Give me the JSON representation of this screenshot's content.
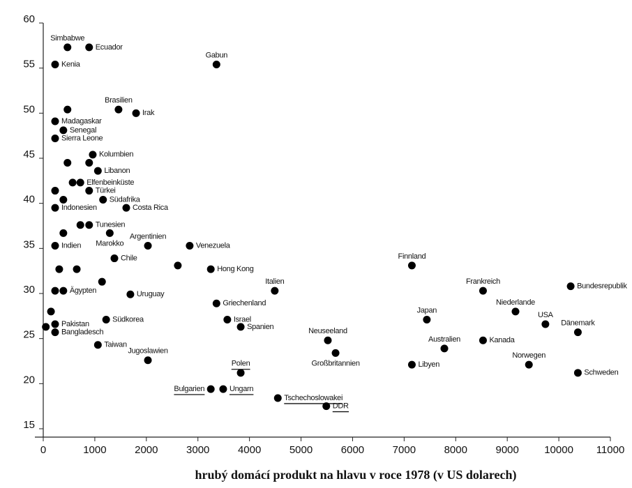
{
  "chart_data": {
    "type": "scatter",
    "xlabel": "hrubý domácí produkt na hlavu v roce 1978 (v US dolarech)",
    "xlim": [
      0,
      11000
    ],
    "ylim": [
      15,
      60
    ],
    "xticks": [
      0,
      1000,
      2000,
      3000,
      4000,
      5000,
      6000,
      7000,
      8000,
      9000,
      10000,
      11000
    ],
    "yticks": [
      15,
      20,
      25,
      30,
      35,
      40,
      45,
      50,
      55,
      60
    ],
    "color": "#000000",
    "labels": [
      "Simbabwe",
      "Ecuador",
      "Kenia",
      "Gabun",
      "Brasilien",
      "Irak",
      null,
      "Madagaskar",
      "Senegal",
      "Sierra Leone",
      "Kolumbien",
      null,
      "Libanon",
      null,
      null,
      "Elfenbeinküste",
      "Türkei",
      null,
      "Südafrika",
      "Costa Rica",
      "Indonesien",
      null,
      null,
      "Tunesien",
      "Marokko",
      null,
      "Indien",
      "Argentinien",
      "Venezuela",
      "Chile",
      null,
      "Hong Kong",
      null,
      null,
      null,
      null,
      "Ägypten",
      "Uruguay",
      "Italien",
      "Griechenland",
      "Israel",
      "Spanien",
      "Südkorea",
      null,
      "Pakistan",
      null,
      "Bangladesch",
      "Taiwan",
      "Jugoslawien",
      "Polen",
      "Bulgarien",
      "Ungarn",
      "Tschechoslowakei",
      "DDR",
      "Neuseeland",
      "Großbritannien",
      "Finnland",
      "Japan",
      "Australien",
      "Libyen",
      "Frankreich",
      "Niederlande",
      "Kanada",
      "USA",
      "Norwegen",
      "Bundesrepublik",
      "Dänemark",
      "Schweden"
    ],
    "x": [
      470,
      890,
      230,
      3360,
      1460,
      1800,
      470,
      230,
      390,
      230,
      960,
      890,
      1060,
      470,
      570,
      720,
      890,
      230,
      1160,
      1610,
      230,
      390,
      720,
      890,
      1290,
      390,
      230,
      2030,
      2840,
      1380,
      2610,
      3250,
      310,
      650,
      1140,
      230,
      390,
      1690,
      4490,
      3360,
      3570,
      3830,
      1220,
      150,
      230,
      50,
      230,
      1060,
      2030,
      3830,
      3250,
      3490,
      4550,
      5490,
      5520,
      5670,
      7150,
      7440,
      7780,
      7150,
      8530,
      9160,
      8530,
      9740,
      9420,
      10230,
      10370,
      10370
    ],
    "y": [
      57.3,
      57.3,
      55.4,
      55.4,
      50.4,
      50.0,
      50.4,
      49.1,
      48.1,
      47.2,
      45.4,
      44.5,
      43.6,
      44.5,
      42.3,
      42.3,
      41.4,
      41.4,
      40.4,
      39.5,
      39.5,
      40.4,
      37.6,
      37.6,
      36.7,
      36.7,
      35.3,
      35.3,
      35.3,
      33.9,
      33.1,
      32.7,
      32.7,
      32.7,
      31.3,
      30.3,
      30.3,
      29.9,
      30.3,
      28.9,
      27.1,
      26.3,
      27.1,
      28.0,
      26.6,
      26.3,
      25.7,
      24.3,
      22.6,
      21.2,
      19.4,
      19.4,
      18.4,
      17.5,
      24.8,
      23.4,
      33.1,
      27.1,
      23.9,
      22.1,
      30.3,
      28.0,
      24.8,
      26.6,
      22.1,
      30.8,
      25.7,
      21.2
    ]
  }
}
